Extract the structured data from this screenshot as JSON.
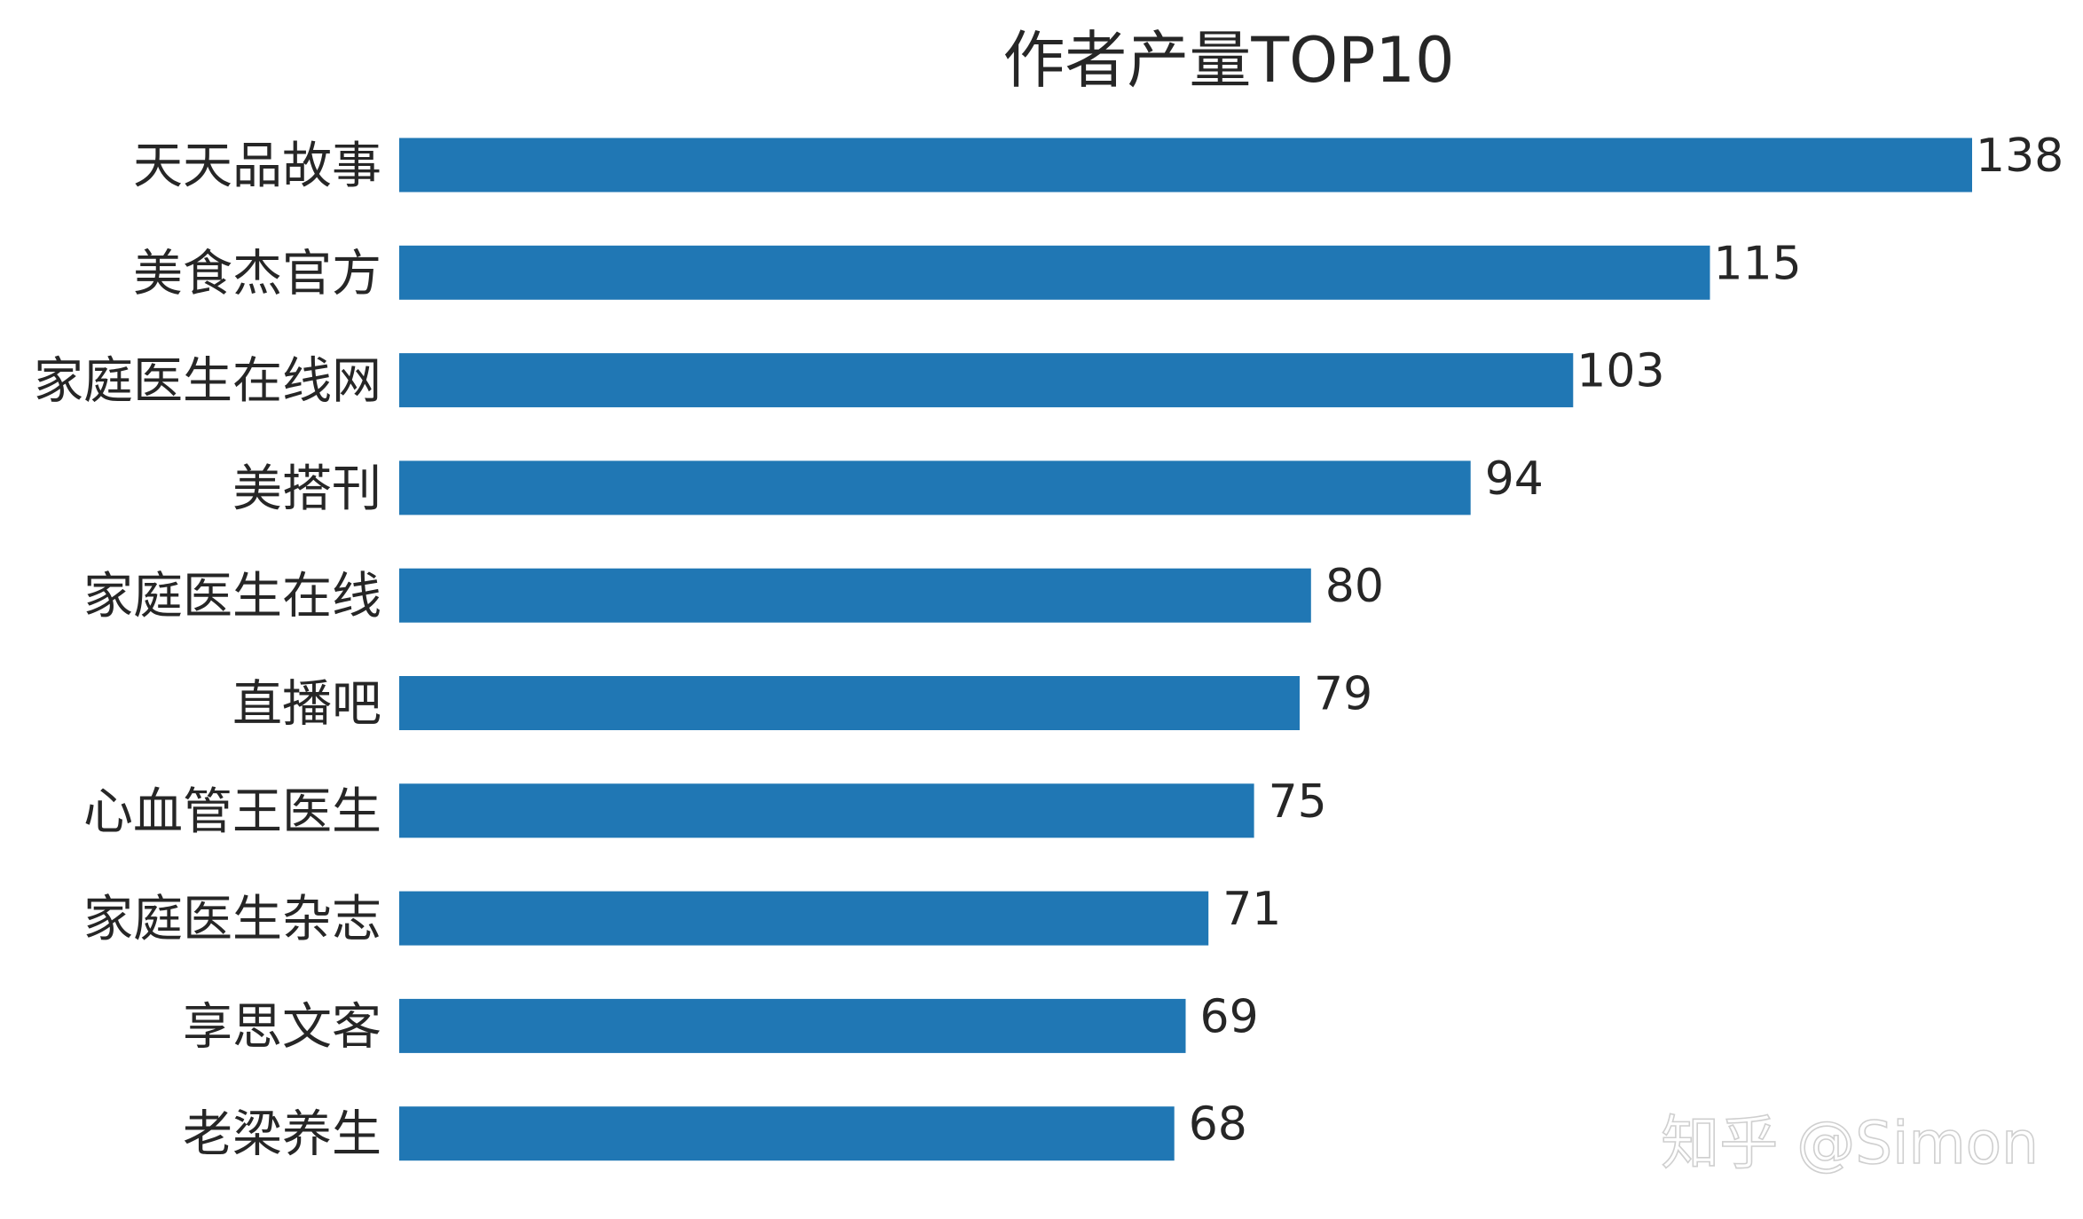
{
  "chart_data": {
    "type": "bar",
    "orientation": "horizontal",
    "title": "作者产量TOP10",
    "xlabel": "",
    "ylabel": "",
    "categories": [
      "天天品故事",
      "美食杰官方",
      "家庭医生在线网",
      "美搭刊",
      "家庭医生在线",
      "直播吧",
      "心血管王医生",
      "家庭医生杂志",
      "享思文客",
      "老梁养生"
    ],
    "values": [
      138,
      115,
      103,
      94,
      80,
      79,
      75,
      71,
      69,
      68
    ],
    "xlim": [
      0,
      138
    ],
    "grid": false,
    "legend": "none",
    "bar_color": "#2077b4",
    "data_labels": true
  },
  "watermark": {
    "text": "知乎 @Simon"
  }
}
